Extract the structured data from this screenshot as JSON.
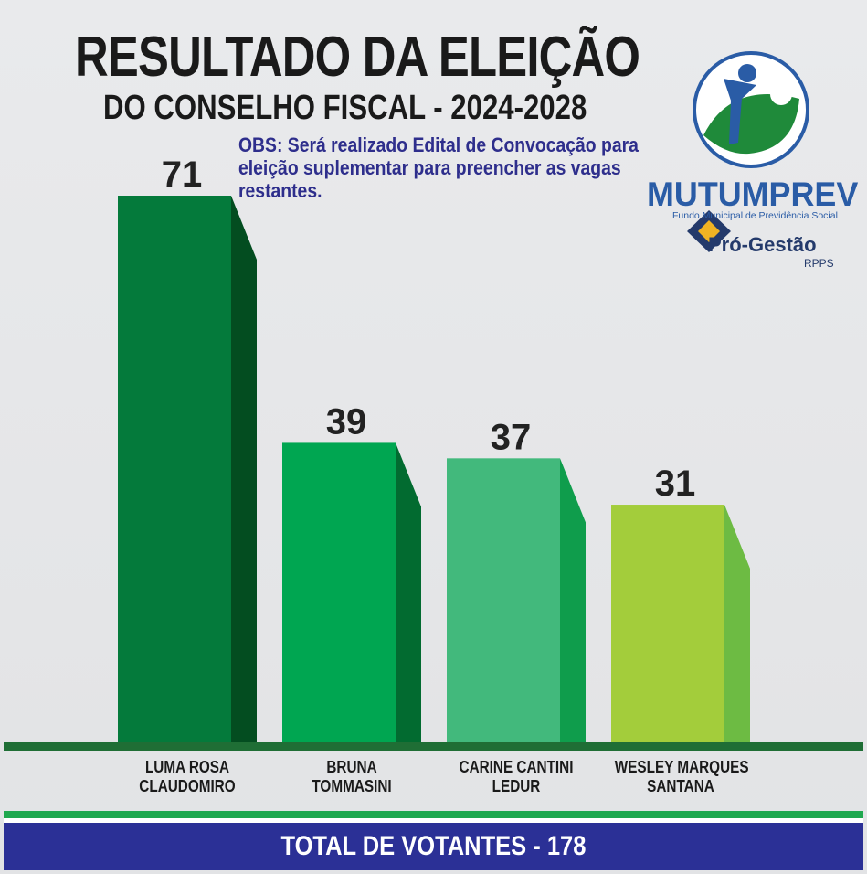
{
  "header": {
    "title": "RESULTADO DA ELEIÇÃO",
    "subtitle": "DO CONSELHO FISCAL - 2024-2028",
    "note": "OBS: Será realizado Edital de Convocação para eleição suplementar para preencher as vagas restantes."
  },
  "logo": {
    "brand": "MUTUMPREV",
    "tagline": "Fundo Municipal de Previdência Social",
    "partner": "Pró-Gestão",
    "partner_sub": "RPPS"
  },
  "chart_data": {
    "type": "bar",
    "categories": [
      "LUMA ROSA CLAUDOMIRO",
      "BRUNA TOMMASINI",
      "CARINE CANTINI LEDUR",
      "WESLEY MARQUES SANTANA"
    ],
    "category_lines": [
      [
        "LUMA ROSA",
        "CLAUDOMIRO"
      ],
      [
        "BRUNA",
        "TOMMASINI"
      ],
      [
        "CARINE CANTINI",
        "LEDUR"
      ],
      [
        "WESLEY MARQUES",
        "SANTANA"
      ]
    ],
    "values": [
      71,
      39,
      37,
      31
    ],
    "value_labels": [
      "71",
      "39",
      "37",
      "31"
    ],
    "colors": [
      "#047a3b",
      "#00a651",
      "#42b97c",
      "#a3cd3b"
    ],
    "side_colors": [
      "#034d20",
      "#026b30",
      "#0f9d4c",
      "#6dbb43"
    ],
    "grid": false
  },
  "footer": {
    "total": "TOTAL DE VOTANTES - 178"
  }
}
